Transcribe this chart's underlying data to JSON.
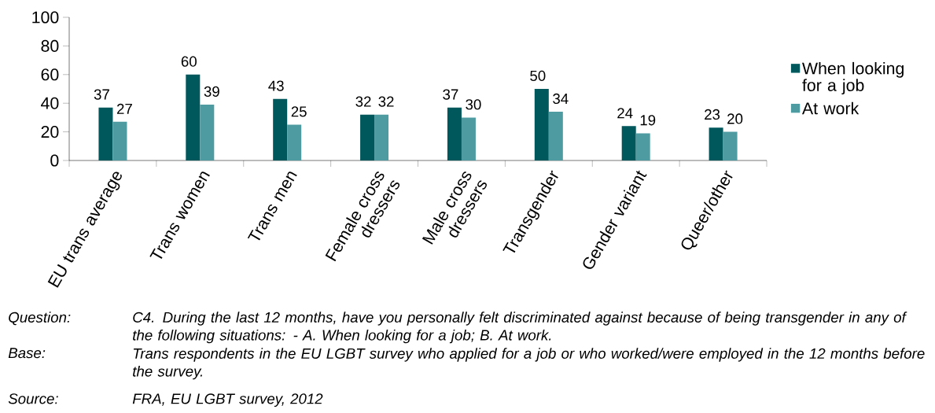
{
  "chart_data": {
    "type": "bar",
    "categories": [
      "EU trans average",
      "Trans women",
      "Trans men",
      "Female cross dressers",
      "Male cross dressers",
      "Transgender",
      "Gender variant",
      "Queer/other"
    ],
    "series": [
      {
        "name": "When looking for a job",
        "color": "#00575c",
        "values": [
          37,
          60,
          43,
          32,
          37,
          50,
          24,
          23
        ]
      },
      {
        "name": "At work",
        "color": "#4e9ba2",
        "values": [
          27,
          39,
          25,
          32,
          30,
          34,
          19,
          20
        ]
      }
    ],
    "ylim": [
      0,
      100
    ],
    "yticks": [
      0,
      20,
      40,
      60,
      80,
      100
    ],
    "data_labels": true,
    "legend": "right",
    "grid": false,
    "annotations": [
      "Question:",
      "C4. During the last 12 months, have you personally felt discriminated against because of being transgender in any of the following situations: - A. When looking for a job; B. At work.",
      "Base:",
      "Trans respondents in the EU LGBT survey who applied for a job or who worked/were employed in the 12 months before the survey.",
      "Source:",
      "FRA, EU LGBT survey, 2012"
    ]
  }
}
